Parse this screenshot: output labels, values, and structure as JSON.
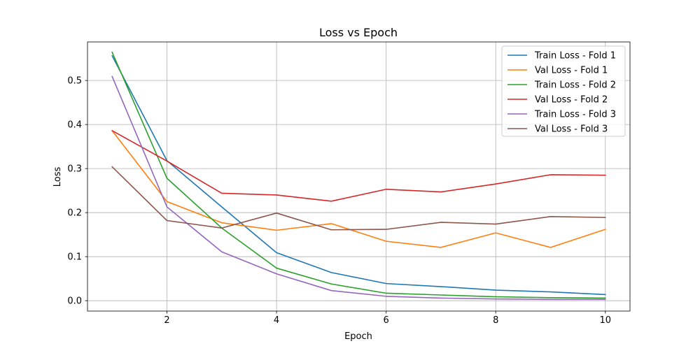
{
  "chart_data": {
    "type": "line",
    "title": "Loss vs Epoch",
    "xlabel": "Epoch",
    "ylabel": "Loss",
    "x": [
      1,
      2,
      3,
      4,
      5,
      6,
      7,
      8,
      9,
      10
    ],
    "xlim": [
      0.55,
      10.45
    ],
    "ylim": [
      -0.0235,
      0.5875
    ],
    "xticks": [
      2,
      4,
      6,
      8,
      10
    ],
    "xtick_labels": [
      "2",
      "4",
      "6",
      "8",
      "10"
    ],
    "yticks": [
      0.0,
      0.1,
      0.2,
      0.3,
      0.4,
      0.5
    ],
    "ytick_labels": [
      "0.0",
      "0.1",
      "0.2",
      "0.3",
      "0.4",
      "0.5"
    ],
    "grid": true,
    "legend_position": "top-right",
    "series": [
      {
        "name": "Train Loss - Fold 1",
        "color": "#1f77b4",
        "values": [
          0.556,
          0.318,
          0.213,
          0.109,
          0.064,
          0.039,
          0.032,
          0.024,
          0.02,
          0.014
        ]
      },
      {
        "name": "Val Loss - Fold 1",
        "color": "#ff7f0e",
        "values": [
          0.386,
          0.225,
          0.177,
          0.16,
          0.175,
          0.135,
          0.121,
          0.154,
          0.121,
          0.162
        ]
      },
      {
        "name": "Train Loss - Fold 2",
        "color": "#2ca02c",
        "values": [
          0.564,
          0.278,
          0.165,
          0.074,
          0.038,
          0.017,
          0.013,
          0.009,
          0.007,
          0.006
        ]
      },
      {
        "name": "Val Loss - Fold 2",
        "color": "#d62728",
        "values": [
          0.386,
          0.317,
          0.244,
          0.24,
          0.226,
          0.253,
          0.247,
          0.265,
          0.286,
          0.285
        ]
      },
      {
        "name": "Train Loss - Fold 3",
        "color": "#9467bd",
        "values": [
          0.509,
          0.213,
          0.111,
          0.061,
          0.023,
          0.01,
          0.006,
          0.004,
          0.003,
          0.003
        ]
      },
      {
        "name": "Val Loss - Fold 3",
        "color": "#8c564b",
        "values": [
          0.304,
          0.182,
          0.165,
          0.199,
          0.161,
          0.162,
          0.178,
          0.174,
          0.191,
          0.189
        ]
      }
    ]
  }
}
